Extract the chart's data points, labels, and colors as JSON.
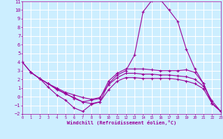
{
  "xlabel": "Windchill (Refroidissement éolien,°C)",
  "ylabel": "",
  "xlim": [
    0,
    23
  ],
  "ylim": [
    -2,
    11
  ],
  "xticks": [
    0,
    1,
    2,
    3,
    4,
    5,
    6,
    7,
    8,
    9,
    10,
    11,
    12,
    13,
    14,
    15,
    16,
    17,
    18,
    19,
    20,
    21,
    22,
    23
  ],
  "yticks": [
    -2,
    -1,
    0,
    1,
    2,
    3,
    4,
    5,
    6,
    7,
    8,
    9,
    10,
    11
  ],
  "bg_color": "#cceeff",
  "grid_color": "#ffffff",
  "line_color": "#990099",
  "line1_x": [
    0,
    1,
    2,
    3,
    4,
    5,
    6,
    7,
    8,
    9,
    10,
    11,
    12,
    13,
    14,
    15,
    16,
    17,
    18,
    19,
    20,
    21,
    22,
    23
  ],
  "line1_y": [
    4,
    2.8,
    2.1,
    1.1,
    0.2,
    -0.4,
    -1.3,
    -1.7,
    -0.9,
    -0.6,
    1.5,
    2.5,
    3.0,
    4.8,
    9.8,
    11.1,
    11.2,
    10.0,
    8.7,
    5.5,
    3.2,
    1.5,
    -0.8,
    -1.7
  ],
  "line2_x": [
    0,
    1,
    2,
    3,
    4,
    5,
    6,
    7,
    8,
    9,
    10,
    11,
    12,
    13,
    14,
    15,
    16,
    17,
    18,
    19,
    20,
    21,
    22,
    23
  ],
  "line2_y": [
    4,
    2.8,
    2.1,
    1.5,
    0.8,
    0.4,
    -0.2,
    -0.6,
    -0.4,
    -0.2,
    1.8,
    2.7,
    3.2,
    3.2,
    3.2,
    3.1,
    3.0,
    3.0,
    3.0,
    3.1,
    2.8,
    1.5,
    -0.8,
    -1.7
  ],
  "line3_x": [
    1,
    2,
    3,
    4,
    5,
    6,
    7,
    8,
    9,
    10,
    11,
    12,
    13,
    14,
    15,
    16,
    17,
    18,
    19,
    20,
    21,
    22,
    23
  ],
  "line3_y": [
    2.8,
    2.1,
    1.5,
    1.0,
    0.5,
    0.2,
    -0.1,
    -0.3,
    -0.1,
    1.4,
    2.2,
    2.7,
    2.7,
    2.6,
    2.6,
    2.5,
    2.5,
    2.4,
    2.3,
    2.0,
    1.2,
    -0.5,
    -1.7
  ],
  "line4_x": [
    1,
    2,
    3,
    4,
    5,
    6,
    7,
    8,
    9,
    10,
    11,
    12,
    13,
    14,
    15,
    16,
    17,
    18,
    19,
    20,
    21,
    22,
    23
  ],
  "line4_y": [
    2.8,
    2.1,
    1.5,
    0.9,
    0.3,
    -0.1,
    -0.6,
    -0.8,
    -0.6,
    0.8,
    1.8,
    2.2,
    2.2,
    2.1,
    2.1,
    2.1,
    2.1,
    2.0,
    1.8,
    1.5,
    0.9,
    -0.8,
    -1.7
  ]
}
